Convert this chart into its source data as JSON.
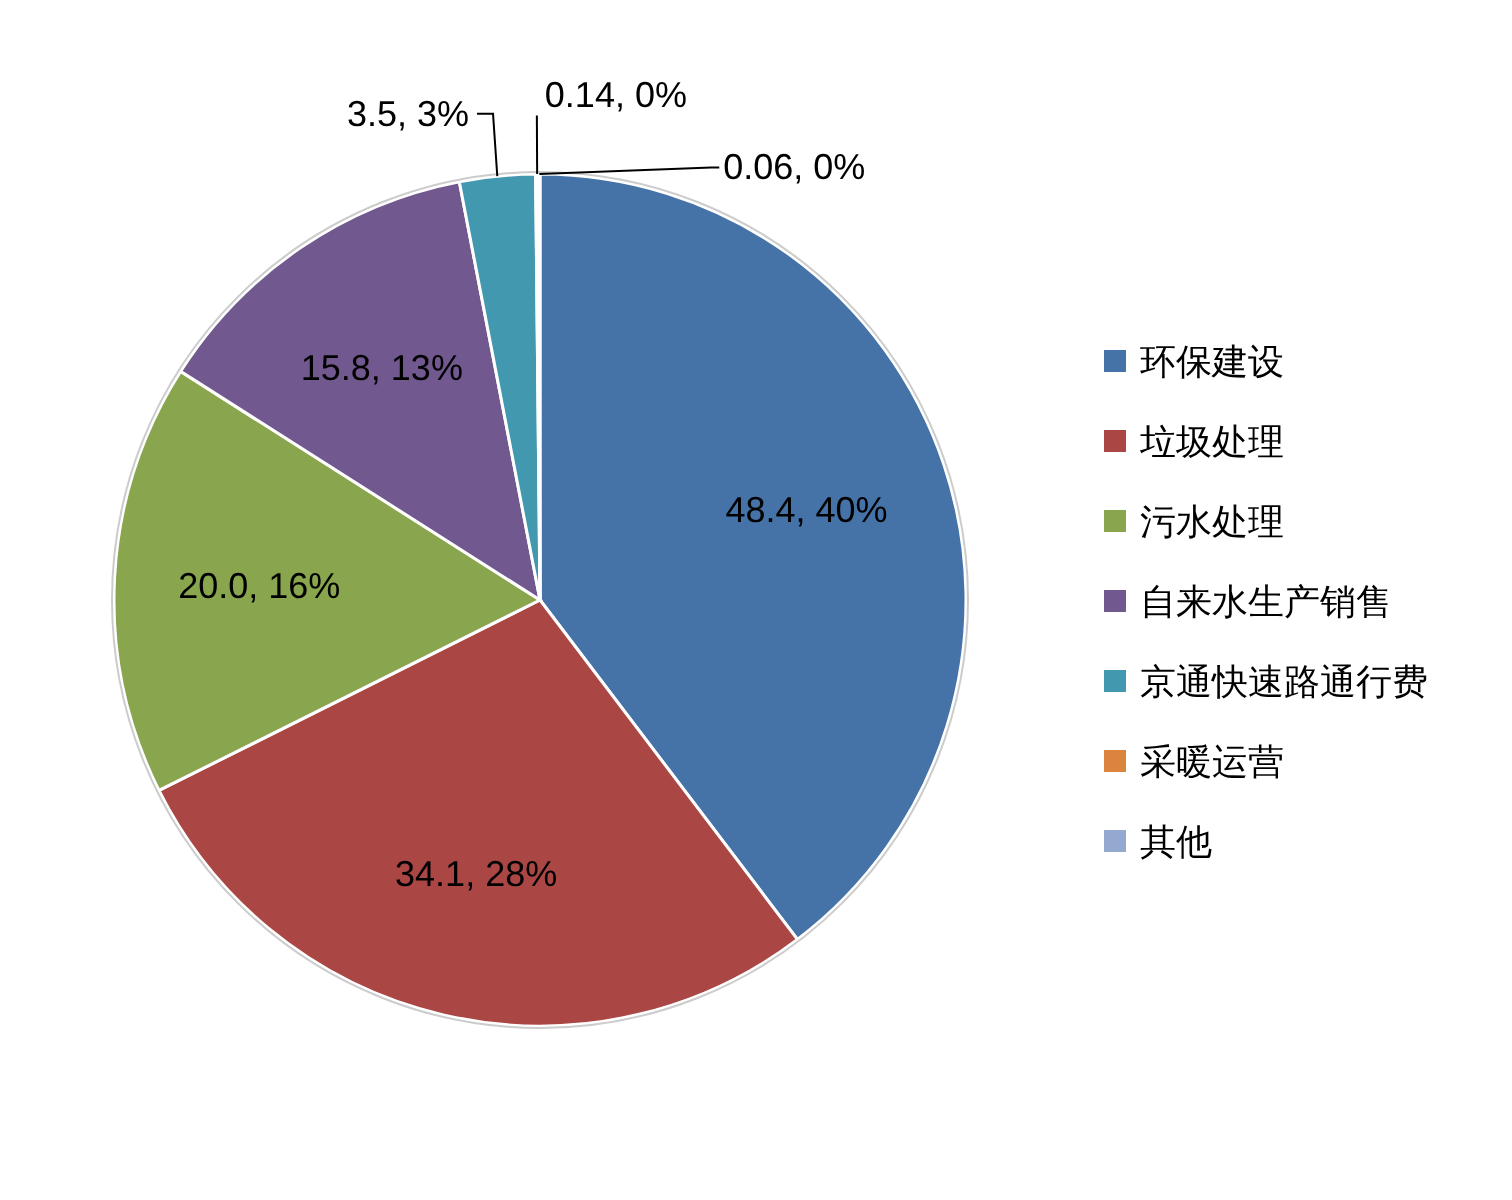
{
  "chart_data": {
    "type": "pie",
    "categories": [
      "环保建设",
      "垃圾处理",
      "污水处理",
      "自来水生产销售",
      "京通快速路通行费",
      "采暖运营",
      "其他"
    ],
    "values": [
      48.4,
      34.1,
      20.0,
      15.8,
      3.5,
      0.14,
      0.06
    ],
    "colors": [
      "#4572a7",
      "#aa4643",
      "#89a54e",
      "#71588f",
      "#4198af",
      "#db843d",
      "#93a9cf"
    ],
    "value_labels": [
      "48.4, 40%",
      "34.1, 28%",
      "20.0, 16%",
      "15.8, 13%",
      "3.5, 3%",
      "0.14, 0%",
      "0.06, 0%"
    ],
    "legend": "right"
  }
}
